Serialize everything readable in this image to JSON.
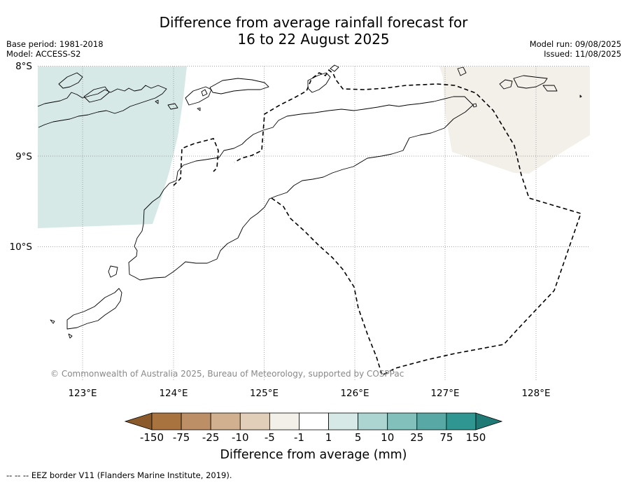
{
  "title": {
    "line1": "Difference from average rainfall forecast for",
    "line2": "16 to 22 August 2025"
  },
  "meta_left": {
    "base_period": "Base period: 1981-2018",
    "model": "Model: ACCESS-S2"
  },
  "meta_right": {
    "model_run": "Model run: 09/08/2025",
    "issued": "Issued: 11/08/2025"
  },
  "map": {
    "lat_labels": [
      "8°S",
      "9°S",
      "10°S"
    ],
    "lon_labels": [
      "123°E",
      "124°E",
      "125°E",
      "126°E",
      "127°E",
      "128°E"
    ],
    "copyright": "© Commonwealth of Australia 2025, Bureau of Meteorology, supported by COSPPac"
  },
  "colorbar": {
    "ticks": [
      "-150",
      "-75",
      "-25",
      "-10",
      "-5",
      "-1",
      "1",
      "5",
      "10",
      "25",
      "75",
      "150"
    ],
    "colors": [
      "#8a5a2b",
      "#a8733f",
      "#bd8f66",
      "#d0b08f",
      "#e2cfba",
      "#f3efe9",
      "#ffffff",
      "#d6e9e7",
      "#acd4d1",
      "#82c0bc",
      "#58a9a6",
      "#2f9692",
      "#1f7a76"
    ],
    "title": "Difference from average (mm)"
  },
  "legend_note": "--  --  -- EEZ border V11 (Flanders Marine Institute, 2019).",
  "shading": {
    "west_wetter": "#d6e9e7",
    "east_drier": "#f3efe9"
  }
}
